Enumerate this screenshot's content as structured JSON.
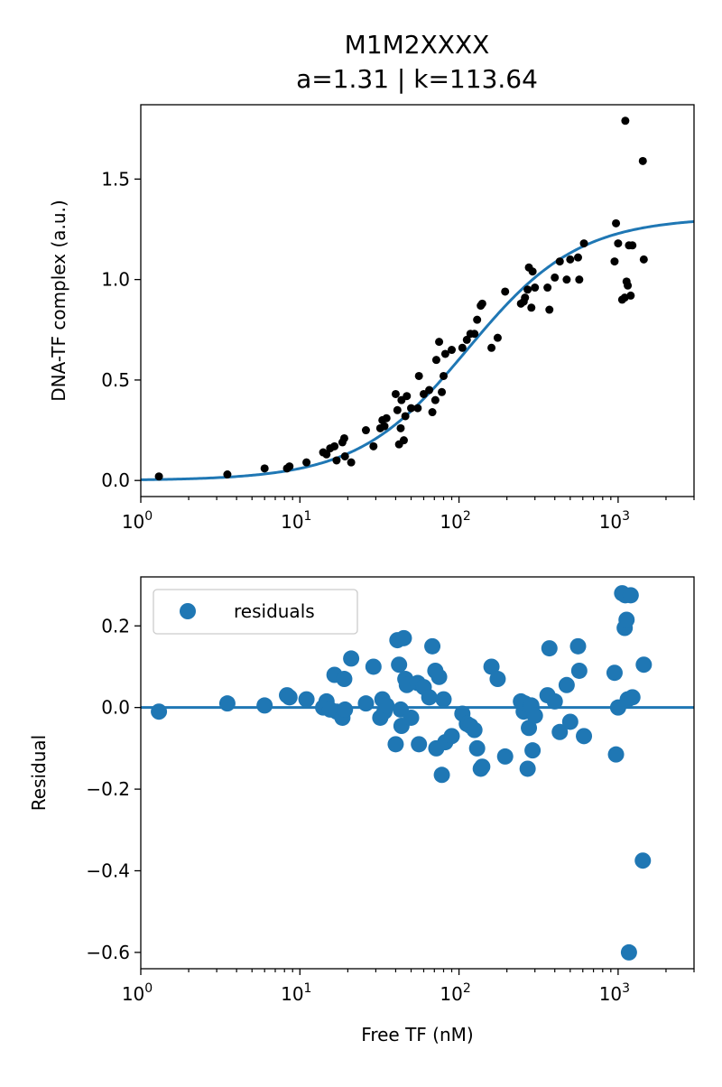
{
  "figure": {
    "title_line1": "M1M2XXXX",
    "title_line2": "a=1.31 | k=113.64"
  },
  "colors": {
    "fit_line": "#1f77b4",
    "data_points": "#000000",
    "residual_points": "#1f77b4",
    "axes": "#000000",
    "legend_border": "#cccccc"
  },
  "chart_data": [
    {
      "type": "scatter",
      "title": "M1M2XXXX a=1.31 | k=113.64",
      "xlabel": "",
      "ylabel": "DNA-TF complex (a.u.)",
      "xscale": "log",
      "xlim": [
        1,
        3000
      ],
      "ylim": [
        -0.08,
        1.87
      ],
      "x_ticks": [
        1,
        10,
        100,
        1000
      ],
      "x_tick_labels": [
        [
          "10",
          "0"
        ],
        [
          "10",
          "1"
        ],
        [
          "10",
          "2"
        ],
        [
          "10",
          "3"
        ]
      ],
      "y_ticks": [
        0.0,
        0.5,
        1.0,
        1.5
      ],
      "y_tick_labels": [
        "0.0",
        "0.5",
        "1.0",
        "1.5"
      ],
      "grid": false,
      "fit": {
        "model": "hill",
        "a": 1.31,
        "k": 113.64,
        "n": 1.25
      },
      "points": [
        [
          1.3,
          0.02
        ],
        [
          3.5,
          0.03
        ],
        [
          6.0,
          0.06
        ],
        [
          8.3,
          0.06
        ],
        [
          8.6,
          0.07
        ],
        [
          11.0,
          0.09
        ],
        [
          14.0,
          0.14
        ],
        [
          14.7,
          0.13
        ],
        [
          15.5,
          0.16
        ],
        [
          16.5,
          0.17
        ],
        [
          17.0,
          0.1
        ],
        [
          18.5,
          0.19
        ],
        [
          19.0,
          0.21
        ],
        [
          19.2,
          0.12
        ],
        [
          21.0,
          0.09
        ],
        [
          26.0,
          0.25
        ],
        [
          29.0,
          0.17
        ],
        [
          32.0,
          0.26
        ],
        [
          33.0,
          0.3
        ],
        [
          34.0,
          0.27
        ],
        [
          35.0,
          0.31
        ],
        [
          40.0,
          0.43
        ],
        [
          41.0,
          0.35
        ],
        [
          42.0,
          0.18
        ],
        [
          43.0,
          0.26
        ],
        [
          43.5,
          0.4
        ],
        [
          45.0,
          0.2
        ],
        [
          46.0,
          0.32
        ],
        [
          47.0,
          0.42
        ],
        [
          50.0,
          0.36
        ],
        [
          55.0,
          0.36
        ],
        [
          56.0,
          0.52
        ],
        [
          60.0,
          0.43
        ],
        [
          65.0,
          0.45
        ],
        [
          68.0,
          0.34
        ],
        [
          71.0,
          0.4
        ],
        [
          72.0,
          0.6
        ],
        [
          75.0,
          0.69
        ],
        [
          78.0,
          0.44
        ],
        [
          80.0,
          0.52
        ],
        [
          82.0,
          0.63
        ],
        [
          90.0,
          0.65
        ],
        [
          105.0,
          0.66
        ],
        [
          112.0,
          0.7
        ],
        [
          118.0,
          0.73
        ],
        [
          125.0,
          0.73
        ],
        [
          130.0,
          0.8
        ],
        [
          137.0,
          0.87
        ],
        [
          140.0,
          0.88
        ],
        [
          160.0,
          0.66
        ],
        [
          175.0,
          0.71
        ],
        [
          195.0,
          0.94
        ],
        [
          245.0,
          0.88
        ],
        [
          255.0,
          0.89
        ],
        [
          260.0,
          0.91
        ],
        [
          270.0,
          0.95
        ],
        [
          275.0,
          1.06
        ],
        [
          285.0,
          0.86
        ],
        [
          290.0,
          1.04
        ],
        [
          300.0,
          0.96
        ],
        [
          360.0,
          0.96
        ],
        [
          370.0,
          0.85
        ],
        [
          400.0,
          1.01
        ],
        [
          430.0,
          1.09
        ],
        [
          475.0,
          1.0
        ],
        [
          500.0,
          1.1
        ],
        [
          560.0,
          1.11
        ],
        [
          570.0,
          1.0
        ],
        [
          610.0,
          1.18
        ],
        [
          950.0,
          1.09
        ],
        [
          970.0,
          1.28
        ],
        [
          1000.0,
          1.18
        ],
        [
          1060.0,
          0.9
        ],
        [
          1100.0,
          0.91
        ],
        [
          1110.0,
          1.79
        ],
        [
          1130.0,
          0.99
        ],
        [
          1150.0,
          0.97
        ],
        [
          1170.0,
          1.17
        ],
        [
          1200.0,
          0.92
        ],
        [
          1230.0,
          1.17
        ],
        [
          1430.0,
          1.59
        ],
        [
          1450.0,
          1.1
        ]
      ]
    },
    {
      "type": "scatter",
      "title": "",
      "xlabel": "Free TF (nM)",
      "ylabel": "Residual",
      "xscale": "log",
      "xlim": [
        1,
        3000
      ],
      "ylim": [
        -0.64,
        0.32
      ],
      "x_ticks": [
        1,
        10,
        100,
        1000
      ],
      "x_tick_labels": [
        [
          "10",
          "0"
        ],
        [
          "10",
          "1"
        ],
        [
          "10",
          "2"
        ],
        [
          "10",
          "3"
        ]
      ],
      "y_ticks": [
        0.2,
        0.0,
        -0.2,
        -0.4,
        -0.6
      ],
      "y_tick_labels": [
        "0.2",
        "0.0",
        "−0.2",
        "−0.4",
        "−0.6"
      ],
      "grid": false,
      "zero_line": 0.0,
      "legend": {
        "entries": [
          "residuals"
        ],
        "placement": "upper-left"
      },
      "series": [
        {
          "name": "residuals",
          "points": [
            [
              1.3,
              -0.01
            ],
            [
              3.5,
              0.01
            ],
            [
              6.0,
              0.005
            ],
            [
              8.3,
              0.03
            ],
            [
              8.6,
              0.025
            ],
            [
              11.0,
              0.02
            ],
            [
              14.0,
              0.0
            ],
            [
              14.7,
              0.015
            ],
            [
              15.5,
              -0.005
            ],
            [
              16.5,
              0.08
            ],
            [
              17.0,
              -0.01
            ],
            [
              18.5,
              -0.025
            ],
            [
              19.0,
              0.07
            ],
            [
              19.2,
              -0.005
            ],
            [
              21.0,
              0.12
            ],
            [
              26.0,
              0.01
            ],
            [
              29.0,
              0.1
            ],
            [
              32.0,
              -0.025
            ],
            [
              33.0,
              0.02
            ],
            [
              34.0,
              -0.01
            ],
            [
              35.0,
              0.005
            ],
            [
              40.0,
              -0.09
            ],
            [
              41.0,
              0.165
            ],
            [
              42.0,
              0.105
            ],
            [
              43.0,
              -0.005
            ],
            [
              43.5,
              -0.045
            ],
            [
              45.0,
              0.17
            ],
            [
              46.0,
              0.07
            ],
            [
              47.0,
              0.055
            ],
            [
              50.0,
              -0.025
            ],
            [
              55.0,
              0.06
            ],
            [
              56.0,
              -0.09
            ],
            [
              60.0,
              0.05
            ],
            [
              65.0,
              0.025
            ],
            [
              68.0,
              0.15
            ],
            [
              71.0,
              0.09
            ],
            [
              72.0,
              -0.1
            ],
            [
              75.0,
              0.075
            ],
            [
              78.0,
              -0.165
            ],
            [
              80.0,
              0.02
            ],
            [
              82.0,
              -0.085
            ],
            [
              90.0,
              -0.07
            ],
            [
              105.0,
              -0.015
            ],
            [
              112.0,
              -0.04
            ],
            [
              118.0,
              -0.045
            ],
            [
              125.0,
              -0.055
            ],
            [
              130.0,
              -0.1
            ],
            [
              137.0,
              -0.15
            ],
            [
              140.0,
              -0.145
            ],
            [
              160.0,
              0.1
            ],
            [
              175.0,
              0.07
            ],
            [
              195.0,
              -0.12
            ],
            [
              245.0,
              0.015
            ],
            [
              255.0,
              -0.01
            ],
            [
              260.0,
              0.01
            ],
            [
              270.0,
              -0.15
            ],
            [
              275.0,
              -0.05
            ],
            [
              285.0,
              0.005
            ],
            [
              290.0,
              -0.105
            ],
            [
              300.0,
              -0.02
            ],
            [
              360.0,
              0.03
            ],
            [
              370.0,
              0.145
            ],
            [
              400.0,
              0.015
            ],
            [
              430.0,
              -0.06
            ],
            [
              475.0,
              0.055
            ],
            [
              500.0,
              -0.035
            ],
            [
              560.0,
              0.15
            ],
            [
              570.0,
              0.09
            ],
            [
              610.0,
              -0.07
            ],
            [
              950.0,
              0.085
            ],
            [
              970.0,
              -0.115
            ],
            [
              1000.0,
              0.0
            ],
            [
              1060.0,
              0.28
            ],
            [
              1100.0,
              0.195
            ],
            [
              1110.0,
              0.275
            ],
            [
              1130.0,
              0.215
            ],
            [
              1150.0,
              0.02
            ],
            [
              1170.0,
              -0.6
            ],
            [
              1200.0,
              0.275
            ],
            [
              1230.0,
              0.025
            ],
            [
              1430.0,
              -0.375
            ],
            [
              1450.0,
              0.105
            ]
          ]
        }
      ]
    }
  ]
}
